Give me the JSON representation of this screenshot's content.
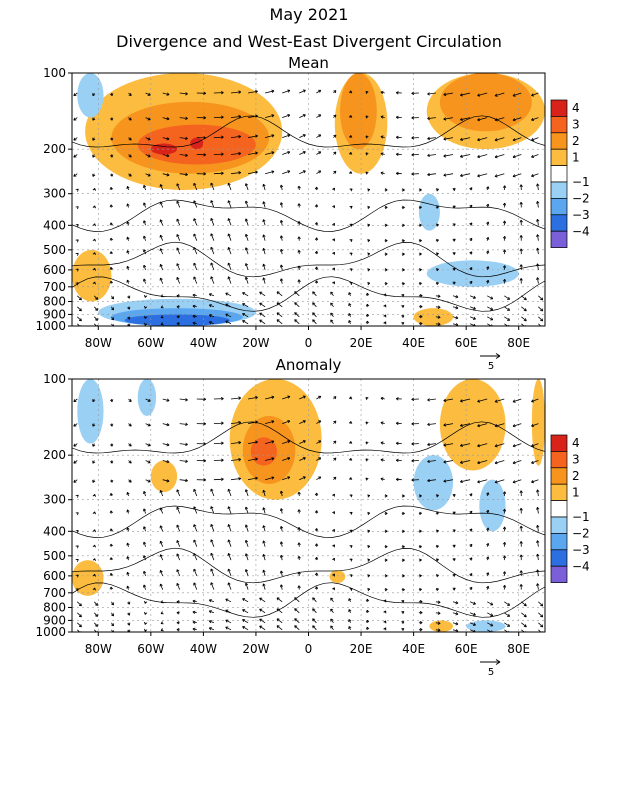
{
  "figure": {
    "title_line1": "May 2021",
    "title_line2": "Divergence and West-East Divergent Circulation"
  },
  "colors": {
    "pos4": "#d7231a",
    "pos3": "#f5641f",
    "pos2": "#f7941d",
    "pos1": "#fbbc3f",
    "zero": "#ffffff",
    "neg1": "#9bd0f5",
    "neg2": "#5aa7f0",
    "neg3": "#2b6fe0",
    "neg4": "#7a5fd8"
  },
  "chart_data": [
    {
      "type": "heatmap",
      "panel_title": "Mean",
      "x_axis": {
        "ticks": [
          "80W",
          "60W",
          "40W",
          "20W",
          "0",
          "20E",
          "40E",
          "60E",
          "80E"
        ],
        "tick_values": [
          -80,
          -60,
          -40,
          -20,
          0,
          20,
          40,
          60,
          80
        ],
        "range": [
          -90,
          90
        ]
      },
      "y_axis": {
        "ticks": [
          "100",
          "200",
          "300",
          "400",
          "500",
          "600",
          "700",
          "800",
          "900",
          "1000"
        ],
        "tick_values": [
          100,
          200,
          300,
          400,
          500,
          600,
          700,
          800,
          900,
          1000
        ],
        "range": [
          1000,
          100
        ],
        "scale": "log"
      },
      "colorbar": {
        "labels": [
          "4",
          "3",
          "2",
          "1",
          "−1",
          "−2",
          "−3",
          "−4"
        ],
        "levels": [
          4,
          3,
          2,
          1,
          -1,
          -2,
          -3,
          -4
        ]
      },
      "vector_reference": "5",
      "grid": true,
      "regions": [
        {
          "level": 1,
          "lon": [
            -85,
            -10
          ],
          "p": [
            100,
            290
          ]
        },
        {
          "level": 2,
          "lon": [
            -75,
            -15
          ],
          "p": [
            130,
            250
          ]
        },
        {
          "level": 3,
          "lon": [
            -65,
            -20
          ],
          "p": [
            160,
            230
          ]
        },
        {
          "level": 4,
          "lon": [
            -60,
            -50
          ],
          "p": [
            190,
            210
          ]
        },
        {
          "level": 4,
          "lon": [
            -45,
            -40
          ],
          "p": [
            180,
            200
          ]
        },
        {
          "level": 1,
          "lon": [
            10,
            30
          ],
          "p": [
            100,
            250
          ]
        },
        {
          "level": 2,
          "lon": [
            12,
            26
          ],
          "p": [
            100,
            200
          ]
        },
        {
          "level": 1,
          "lon": [
            45,
            90
          ],
          "p": [
            100,
            200
          ]
        },
        {
          "level": 2,
          "lon": [
            50,
            85
          ],
          "p": [
            100,
            170
          ]
        },
        {
          "level": -1,
          "lon": [
            -88,
            -78
          ],
          "p": [
            100,
            150
          ]
        },
        {
          "level": -1,
          "lon": [
            42,
            50
          ],
          "p": [
            300,
            420
          ]
        },
        {
          "level": -1,
          "lon": [
            45,
            80
          ],
          "p": [
            550,
            700
          ]
        },
        {
          "level": 1,
          "lon": [
            -90,
            -75
          ],
          "p": [
            500,
            800
          ]
        },
        {
          "level": -1,
          "lon": [
            -80,
            -20
          ],
          "p": [
            780,
            1000
          ]
        },
        {
          "level": -2,
          "lon": [
            -75,
            -25
          ],
          "p": [
            850,
            1000
          ]
        },
        {
          "level": -3,
          "lon": [
            -70,
            -30
          ],
          "p": [
            900,
            1000
          ]
        },
        {
          "level": 1,
          "lon": [
            40,
            55
          ],
          "p": [
            850,
            1000
          ]
        }
      ]
    },
    {
      "type": "heatmap",
      "panel_title": "Anomaly",
      "x_axis": {
        "ticks": [
          "80W",
          "60W",
          "40W",
          "20W",
          "0",
          "20E",
          "40E",
          "60E",
          "80E"
        ],
        "tick_values": [
          -80,
          -60,
          -40,
          -20,
          0,
          20,
          40,
          60,
          80
        ],
        "range": [
          -90,
          90
        ]
      },
      "y_axis": {
        "ticks": [
          "100",
          "200",
          "300",
          "400",
          "500",
          "600",
          "700",
          "800",
          "900",
          "1000"
        ],
        "tick_values": [
          100,
          200,
          300,
          400,
          500,
          600,
          700,
          800,
          900,
          1000
        ],
        "range": [
          1000,
          100
        ],
        "scale": "log"
      },
      "colorbar": {
        "labels": [
          "4",
          "3",
          "2",
          "1",
          "−1",
          "−2",
          "−3",
          "−4"
        ],
        "levels": [
          4,
          3,
          2,
          1,
          -1,
          -2,
          -3,
          -4
        ]
      },
      "vector_reference": "5",
      "grid": true,
      "regions": [
        {
          "level": 1,
          "lon": [
            -30,
            5
          ],
          "p": [
            100,
            300
          ]
        },
        {
          "level": 2,
          "lon": [
            -25,
            -5
          ],
          "p": [
            140,
            260
          ]
        },
        {
          "level": 3,
          "lon": [
            -22,
            -12
          ],
          "p": [
            170,
            220
          ]
        },
        {
          "level": 1,
          "lon": [
            -60,
            -50
          ],
          "p": [
            210,
            280
          ]
        },
        {
          "level": 1,
          "lon": [
            50,
            75
          ],
          "p": [
            100,
            230
          ]
        },
        {
          "level": 1,
          "lon": [
            85,
            90
          ],
          "p": [
            100,
            220
          ]
        },
        {
          "level": -1,
          "lon": [
            -88,
            -78
          ],
          "p": [
            100,
            180
          ]
        },
        {
          "level": -1,
          "lon": [
            -65,
            -58
          ],
          "p": [
            100,
            140
          ]
        },
        {
          "level": -1,
          "lon": [
            40,
            55
          ],
          "p": [
            200,
            330
          ]
        },
        {
          "level": -1,
          "lon": [
            65,
            75
          ],
          "p": [
            250,
            400
          ]
        },
        {
          "level": 1,
          "lon": [
            -90,
            -78
          ],
          "p": [
            520,
            720
          ]
        },
        {
          "level": 1,
          "lon": [
            8,
            14
          ],
          "p": [
            570,
            640
          ]
        },
        {
          "level": 1,
          "lon": [
            46,
            55
          ],
          "p": [
            900,
            1000
          ]
        },
        {
          "level": -1,
          "lon": [
            60,
            75
          ],
          "p": [
            900,
            1000
          ]
        }
      ]
    }
  ]
}
